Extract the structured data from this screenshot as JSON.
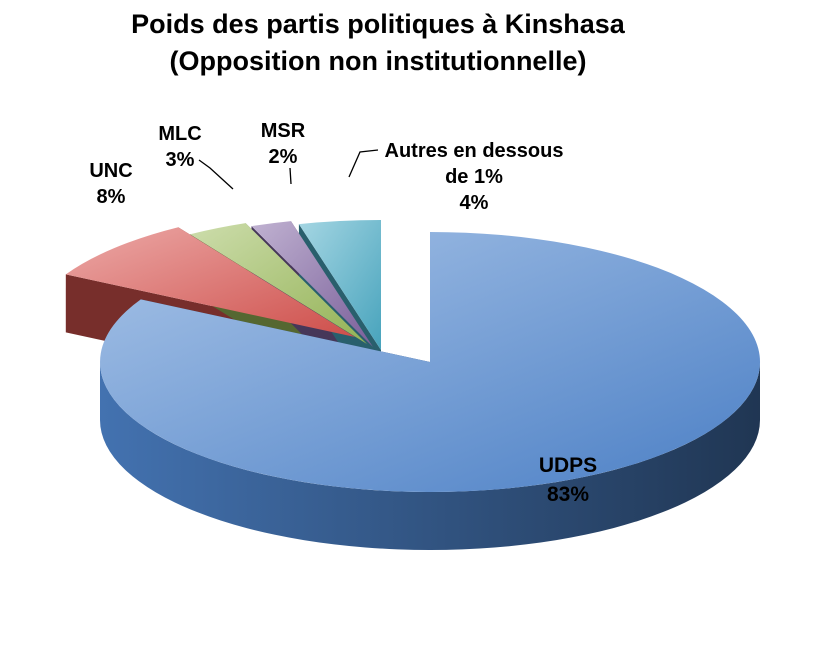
{
  "chart_data": {
    "type": "pie",
    "title": "Poids des partis politiques à Kinshasa",
    "subtitle": "(Opposition non institutionnelle)",
    "categories": [
      "UDPS",
      "UNC",
      "MLC",
      "MSR",
      "Autres en dessous de 1%"
    ],
    "values": [
      83,
      8,
      3,
      2,
      4
    ],
    "value_labels": [
      "83%",
      "8%",
      "3%",
      "2%",
      "4%"
    ],
    "label_lines": [
      [
        "UDPS",
        "83%"
      ],
      [
        "UNC",
        "8%"
      ],
      [
        "MLC",
        "3%"
      ],
      [
        "MSR",
        "2%"
      ],
      [
        "Autres en dessous",
        "de 1%",
        "4%"
      ]
    ],
    "colors": [
      "#4f86cf",
      "#d9534f",
      "#9bbb59",
      "#8064a2",
      "#4bacc6"
    ],
    "style": "3d-exploded",
    "legend": "none"
  }
}
